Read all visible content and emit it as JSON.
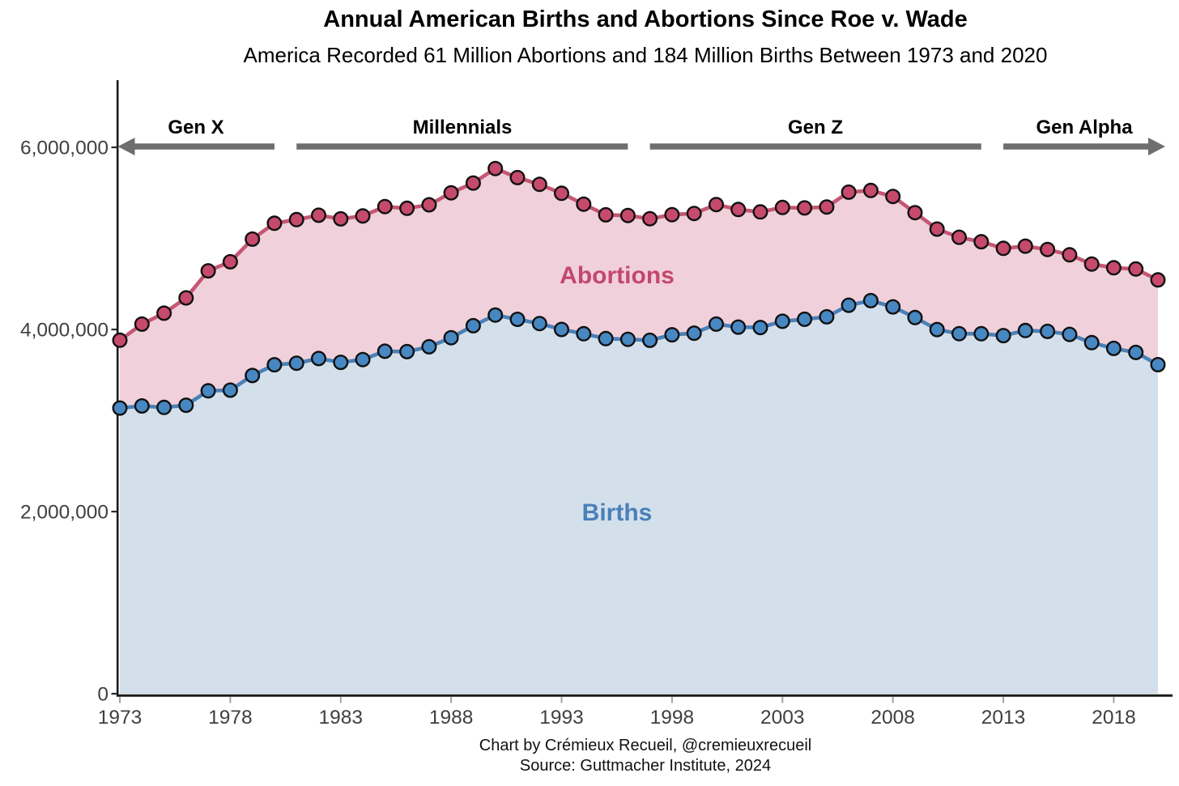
{
  "title": "Annual American Births and Abortions Since Roe v. Wade",
  "subtitle": "America Recorded 61 Million Abortions and 184 Million Births Between 1973 and 2020",
  "footer": {
    "credit": "Chart by Crémieux Recueil, @cremieuxrecueil",
    "source": "Source: Guttmacher Institute, 2024"
  },
  "chart_data": {
    "type": "area",
    "stacked": true,
    "title": "Annual American Births and Abortions Since Roe v. Wade",
    "subtitle": "America Recorded 61 Million Abortions and 184 Million Births Between 1973 and 2020",
    "xlabel": "",
    "ylabel": "",
    "grid": false,
    "legend_position": "inline-area-labels",
    "ylim": [
      0,
      6740000
    ],
    "x": [
      1973,
      1974,
      1975,
      1976,
      1977,
      1978,
      1979,
      1980,
      1981,
      1982,
      1983,
      1984,
      1985,
      1986,
      1987,
      1988,
      1989,
      1990,
      1991,
      1992,
      1993,
      1994,
      1995,
      1996,
      1997,
      1998,
      1999,
      2000,
      2001,
      2002,
      2003,
      2004,
      2005,
      2006,
      2007,
      2008,
      2009,
      2010,
      2011,
      2012,
      2013,
      2014,
      2015,
      2016,
      2017,
      2018,
      2019,
      2020
    ],
    "series": [
      {
        "name": "Births",
        "label": "Births",
        "values": [
          3136965,
          3159958,
          3144198,
          3167788,
          3326632,
          3333279,
          3494398,
          3612258,
          3629238,
          3680537,
          3638933,
          3669141,
          3760561,
          3756547,
          3809394,
          3909510,
          4040958,
          4158212,
          4110907,
          4065014,
          4000240,
          3952767,
          3899589,
          3891494,
          3880894,
          3941553,
          3959417,
          4058814,
          4025933,
          4021726,
          4089950,
          4112052,
          4138349,
          4265555,
          4316233,
          4247694,
          4130665,
          3999386,
          3953590,
          3952841,
          3932181,
          3988076,
          3978497,
          3945875,
          3855500,
          3791712,
          3747540,
          3613647
        ],
        "line_color": "#4a80b8",
        "marker_color": "#4787c2",
        "fill_color": "#d3e0ec",
        "label_color": "#4a80b8"
      },
      {
        "name": "Abortions",
        "label": "Abortions",
        "values": [
          744600,
          898600,
          1034200,
          1179300,
          1316700,
          1409600,
          1497700,
          1553900,
          1577300,
          1573900,
          1575000,
          1577200,
          1588600,
          1574000,
          1559100,
          1590800,
          1566900,
          1608600,
          1556500,
          1528900,
          1495000,
          1423000,
          1359400,
          1360200,
          1335000,
          1319000,
          1314800,
          1313000,
          1291000,
          1269000,
          1250000,
          1222100,
          1206200,
          1242200,
          1209600,
          1212400,
          1151600,
          1102700,
          1058500,
          1011000,
          958700,
          926200,
          899500,
          874100,
          862300,
          885800,
          916500,
          930200
        ],
        "line_color": "#c55673",
        "marker_color": "#c54a6c",
        "fill_color": "#f0d0da",
        "label_color": "#c2476e"
      }
    ],
    "y_ticks": [
      {
        "value": 0,
        "label": "0"
      },
      {
        "value": 2000000,
        "label": "2,000,000"
      },
      {
        "value": 4000000,
        "label": "4,000,000"
      },
      {
        "value": 6000000,
        "label": "6,000,000"
      }
    ],
    "x_ticks": [
      1973,
      1978,
      1983,
      1988,
      1993,
      1998,
      2003,
      2008,
      2013,
      2018
    ],
    "generations": [
      {
        "label": "Gen X",
        "from": 1973,
        "to": 1980,
        "arrow": "left"
      },
      {
        "label": "Millennials",
        "from": 1981,
        "to": 1996,
        "arrow": "none"
      },
      {
        "label": "Gen Z",
        "from": 1997,
        "to": 2012,
        "arrow": "none"
      },
      {
        "label": "Gen Alpha",
        "from": 2013,
        "to": 2020,
        "arrow": "right"
      }
    ],
    "colors": {
      "axis": "#1a1a1a",
      "tick_label_text": "#404040",
      "x_tick_mark": "#a3a3a3",
      "y_tick_mark": "#2a2a2a",
      "generation_arrow": "#6e6e6e"
    }
  }
}
